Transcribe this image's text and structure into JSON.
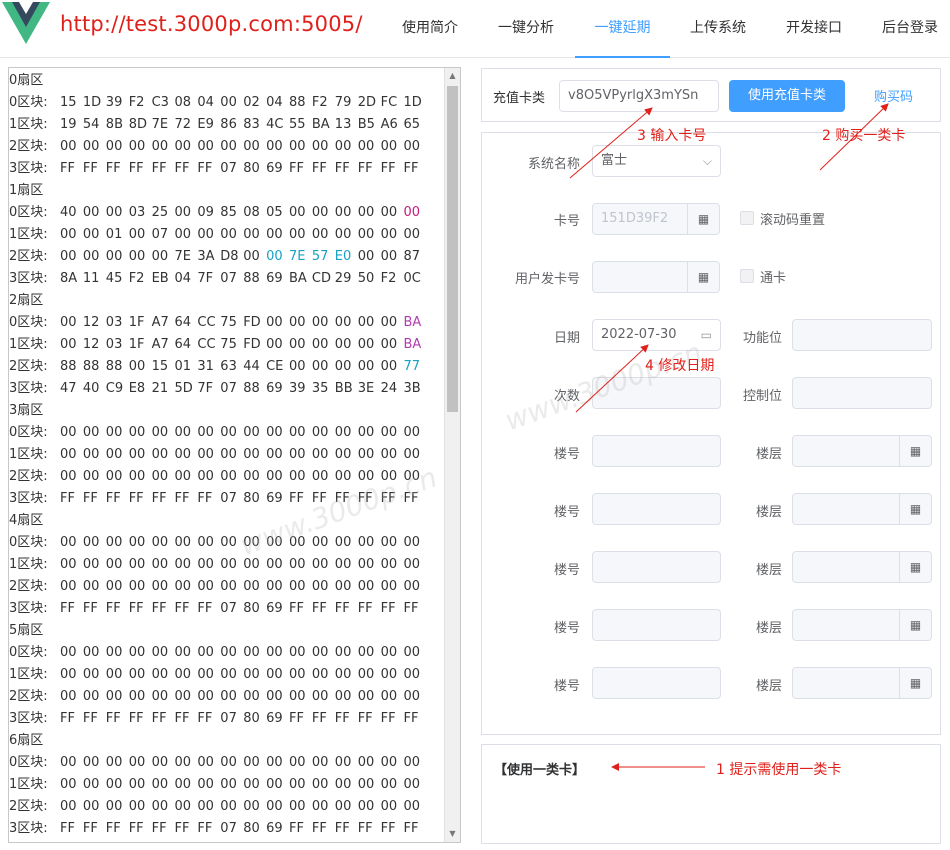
{
  "header": {
    "url": "http://test.3000p.com:5005/",
    "nav": [
      {
        "label": "使用简介",
        "active": false
      },
      {
        "label": "一键分析",
        "active": false
      },
      {
        "label": "一键延期",
        "active": true
      },
      {
        "label": "上传系统",
        "active": false
      },
      {
        "label": "开发接口",
        "active": false
      },
      {
        "label": "后台登录",
        "active": false
      }
    ]
  },
  "hex_panel": {
    "lines": [
      {
        "label": "0扇区",
        "bytes": []
      },
      {
        "label": "0区块:",
        "bytes": [
          "15",
          "1D",
          "39",
          "F2",
          "C3",
          "08",
          "04",
          "00",
          "02",
          "04",
          "88",
          "F2",
          "79",
          "2D",
          "FC",
          "1D"
        ]
      },
      {
        "label": "1区块:",
        "bytes": [
          "19",
          "54",
          "8B",
          "8D",
          "7E",
          "72",
          "E9",
          "86",
          "83",
          "4C",
          "55",
          "BA",
          "13",
          "B5",
          "A6",
          "65"
        ]
      },
      {
        "label": "2区块:",
        "bytes": [
          "00",
          "00",
          "00",
          "00",
          "00",
          "00",
          "00",
          "00",
          "00",
          "00",
          "00",
          "00",
          "00",
          "00",
          "00",
          "00"
        ]
      },
      {
        "label": "3区块:",
        "bytes": [
          "FF",
          "FF",
          "FF",
          "FF",
          "FF",
          "FF",
          "FF",
          "07",
          "80",
          "69",
          "FF",
          "FF",
          "FF",
          "FF",
          "FF",
          "FF"
        ]
      },
      {
        "label": "1扇区",
        "bytes": []
      },
      {
        "label": "0区块:",
        "bytes": [
          "40",
          "00",
          "00",
          "03",
          "25",
          "00",
          "09",
          "85",
          "08",
          "05",
          "00",
          "00",
          "00",
          "00",
          "00",
          "00"
        ],
        "colors": {
          "15": "#c41a7a"
        }
      },
      {
        "label": "1区块:",
        "bytes": [
          "00",
          "00",
          "01",
          "00",
          "07",
          "00",
          "00",
          "00",
          "00",
          "00",
          "00",
          "00",
          "00",
          "00",
          "00",
          "00"
        ]
      },
      {
        "label": "2区块:",
        "bytes": [
          "00",
          "00",
          "00",
          "00",
          "00",
          "7E",
          "3A",
          "D8",
          "00",
          "00",
          "7E",
          "57",
          "E0",
          "00",
          "00",
          "87"
        ],
        "colors": {
          "9": "#17a2c2",
          "10": "#17a2c2",
          "11": "#17a2c2",
          "12": "#17a2c2"
        }
      },
      {
        "label": "3区块:",
        "bytes": [
          "8A",
          "11",
          "45",
          "F2",
          "EB",
          "04",
          "7F",
          "07",
          "88",
          "69",
          "BA",
          "CD",
          "29",
          "50",
          "F2",
          "0C"
        ]
      },
      {
        "label": "2扇区",
        "bytes": []
      },
      {
        "label": "0区块:",
        "bytes": [
          "00",
          "12",
          "03",
          "1F",
          "A7",
          "64",
          "CC",
          "75",
          "FD",
          "00",
          "00",
          "00",
          "00",
          "00",
          "00",
          "BA"
        ],
        "colors": {
          "15": "#b23bb2"
        }
      },
      {
        "label": "1区块:",
        "bytes": [
          "00",
          "12",
          "03",
          "1F",
          "A7",
          "64",
          "CC",
          "75",
          "FD",
          "00",
          "00",
          "00",
          "00",
          "00",
          "00",
          "BA"
        ],
        "colors": {
          "15": "#b23bb2"
        }
      },
      {
        "label": "2区块:",
        "bytes": [
          "88",
          "88",
          "88",
          "00",
          "15",
          "01",
          "31",
          "63",
          "44",
          "CE",
          "00",
          "00",
          "00",
          "00",
          "00",
          "77"
        ],
        "colors": {
          "15": "#17a2c2"
        }
      },
      {
        "label": "3区块:",
        "bytes": [
          "47",
          "40",
          "C9",
          "E8",
          "21",
          "5D",
          "7F",
          "07",
          "88",
          "69",
          "39",
          "35",
          "BB",
          "3E",
          "24",
          "3B"
        ]
      },
      {
        "label": "3扇区",
        "bytes": []
      },
      {
        "label": "0区块:",
        "bytes": [
          "00",
          "00",
          "00",
          "00",
          "00",
          "00",
          "00",
          "00",
          "00",
          "00",
          "00",
          "00",
          "00",
          "00",
          "00",
          "00"
        ]
      },
      {
        "label": "1区块:",
        "bytes": [
          "00",
          "00",
          "00",
          "00",
          "00",
          "00",
          "00",
          "00",
          "00",
          "00",
          "00",
          "00",
          "00",
          "00",
          "00",
          "00"
        ]
      },
      {
        "label": "2区块:",
        "bytes": [
          "00",
          "00",
          "00",
          "00",
          "00",
          "00",
          "00",
          "00",
          "00",
          "00",
          "00",
          "00",
          "00",
          "00",
          "00",
          "00"
        ]
      },
      {
        "label": "3区块:",
        "bytes": [
          "FF",
          "FF",
          "FF",
          "FF",
          "FF",
          "FF",
          "FF",
          "07",
          "80",
          "69",
          "FF",
          "FF",
          "FF",
          "FF",
          "FF",
          "FF"
        ]
      },
      {
        "label": "4扇区",
        "bytes": []
      },
      {
        "label": "0区块:",
        "bytes": [
          "00",
          "00",
          "00",
          "00",
          "00",
          "00",
          "00",
          "00",
          "00",
          "00",
          "00",
          "00",
          "00",
          "00",
          "00",
          "00"
        ]
      },
      {
        "label": "1区块:",
        "bytes": [
          "00",
          "00",
          "00",
          "00",
          "00",
          "00",
          "00",
          "00",
          "00",
          "00",
          "00",
          "00",
          "00",
          "00",
          "00",
          "00"
        ]
      },
      {
        "label": "2区块:",
        "bytes": [
          "00",
          "00",
          "00",
          "00",
          "00",
          "00",
          "00",
          "00",
          "00",
          "00",
          "00",
          "00",
          "00",
          "00",
          "00",
          "00"
        ]
      },
      {
        "label": "3区块:",
        "bytes": [
          "FF",
          "FF",
          "FF",
          "FF",
          "FF",
          "FF",
          "FF",
          "07",
          "80",
          "69",
          "FF",
          "FF",
          "FF",
          "FF",
          "FF",
          "FF"
        ]
      },
      {
        "label": "5扇区",
        "bytes": []
      },
      {
        "label": "0区块:",
        "bytes": [
          "00",
          "00",
          "00",
          "00",
          "00",
          "00",
          "00",
          "00",
          "00",
          "00",
          "00",
          "00",
          "00",
          "00",
          "00",
          "00"
        ]
      },
      {
        "label": "1区块:",
        "bytes": [
          "00",
          "00",
          "00",
          "00",
          "00",
          "00",
          "00",
          "00",
          "00",
          "00",
          "00",
          "00",
          "00",
          "00",
          "00",
          "00"
        ]
      },
      {
        "label": "2区块:",
        "bytes": [
          "00",
          "00",
          "00",
          "00",
          "00",
          "00",
          "00",
          "00",
          "00",
          "00",
          "00",
          "00",
          "00",
          "00",
          "00",
          "00"
        ]
      },
      {
        "label": "3区块:",
        "bytes": [
          "FF",
          "FF",
          "FF",
          "FF",
          "FF",
          "FF",
          "FF",
          "07",
          "80",
          "69",
          "FF",
          "FF",
          "FF",
          "FF",
          "FF",
          "FF"
        ]
      },
      {
        "label": "6扇区",
        "bytes": []
      },
      {
        "label": "0区块:",
        "bytes": [
          "00",
          "00",
          "00",
          "00",
          "00",
          "00",
          "00",
          "00",
          "00",
          "00",
          "00",
          "00",
          "00",
          "00",
          "00",
          "00"
        ]
      },
      {
        "label": "1区块:",
        "bytes": [
          "00",
          "00",
          "00",
          "00",
          "00",
          "00",
          "00",
          "00",
          "00",
          "00",
          "00",
          "00",
          "00",
          "00",
          "00",
          "00"
        ]
      },
      {
        "label": "2区块:",
        "bytes": [
          "00",
          "00",
          "00",
          "00",
          "00",
          "00",
          "00",
          "00",
          "00",
          "00",
          "00",
          "00",
          "00",
          "00",
          "00",
          "00"
        ]
      },
      {
        "label": "3区块:",
        "bytes": [
          "FF",
          "FF",
          "FF",
          "FF",
          "FF",
          "FF",
          "FF",
          "07",
          "80",
          "69",
          "FF",
          "FF",
          "FF",
          "FF",
          "FF",
          "FF"
        ]
      }
    ]
  },
  "recharge": {
    "label": "充值卡类",
    "input_value": "v8O5VPyrlgX3mYSn",
    "use_button": "使用充值卡类",
    "buy_link": "购买码"
  },
  "form": {
    "system_name_label": "系统名称",
    "system_name_value": "富士",
    "card_no_label": "卡号",
    "card_no_value": "151D39F2",
    "rolling_reset_label": "滚动码重置",
    "user_card_label": "用户发卡号",
    "universal_card_label": "通卡",
    "date_label": "日期",
    "date_value": "2022-07-30",
    "function_label": "功能位",
    "count_label": "次数",
    "control_label": "控制位",
    "building_label": "楼号",
    "floor_label": "楼层",
    "calc_icon": "calculator-icon"
  },
  "message": {
    "text": "【使用一类卡】"
  },
  "annotations": {
    "a1": "1 提示需使用一类卡",
    "a2": "2 购买一类卡",
    "a3": "3 输入卡号",
    "a4": "4 修改日期"
  },
  "colors": {
    "accent": "#409eff",
    "annotation": "#e0201a"
  }
}
